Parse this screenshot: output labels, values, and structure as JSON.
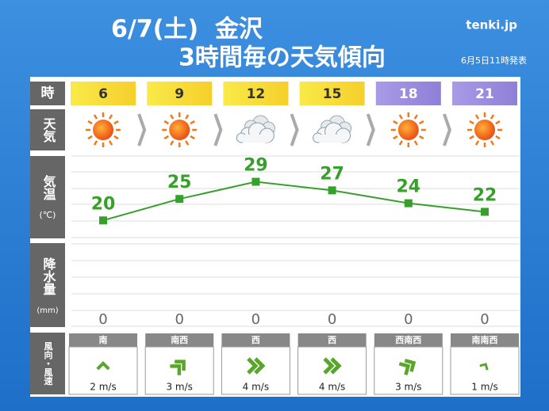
{
  "header": {
    "title": "6/7(土)  金沢",
    "subtitle": "3時間毎の天気傾向",
    "issued": "6月5日11時発表",
    "logo": "tenki.jp"
  },
  "row_labels": {
    "hour": "時",
    "weather": "天気",
    "temp": "気温",
    "temp_unit": "(℃)",
    "precip": "降水量",
    "precip_unit": "(mm)",
    "wind": "風向・風速"
  },
  "chart_data": {
    "type": "line",
    "categories": [
      6,
      9,
      12,
      15,
      18,
      21
    ],
    "values": [
      20,
      25,
      29,
      27,
      24,
      22
    ],
    "color": "#36a02a",
    "ylim": [
      16,
      35
    ]
  },
  "precipitation": {
    "values": [
      0,
      0,
      0,
      0,
      0,
      0
    ]
  },
  "wind": {
    "directions": [
      "南",
      "南西",
      "西",
      "西",
      "西南西",
      "南南西"
    ],
    "speeds": [
      "2 m/s",
      "3 m/s",
      "4 m/s",
      "4 m/s",
      "3 m/s",
      "1 m/s"
    ]
  }
}
